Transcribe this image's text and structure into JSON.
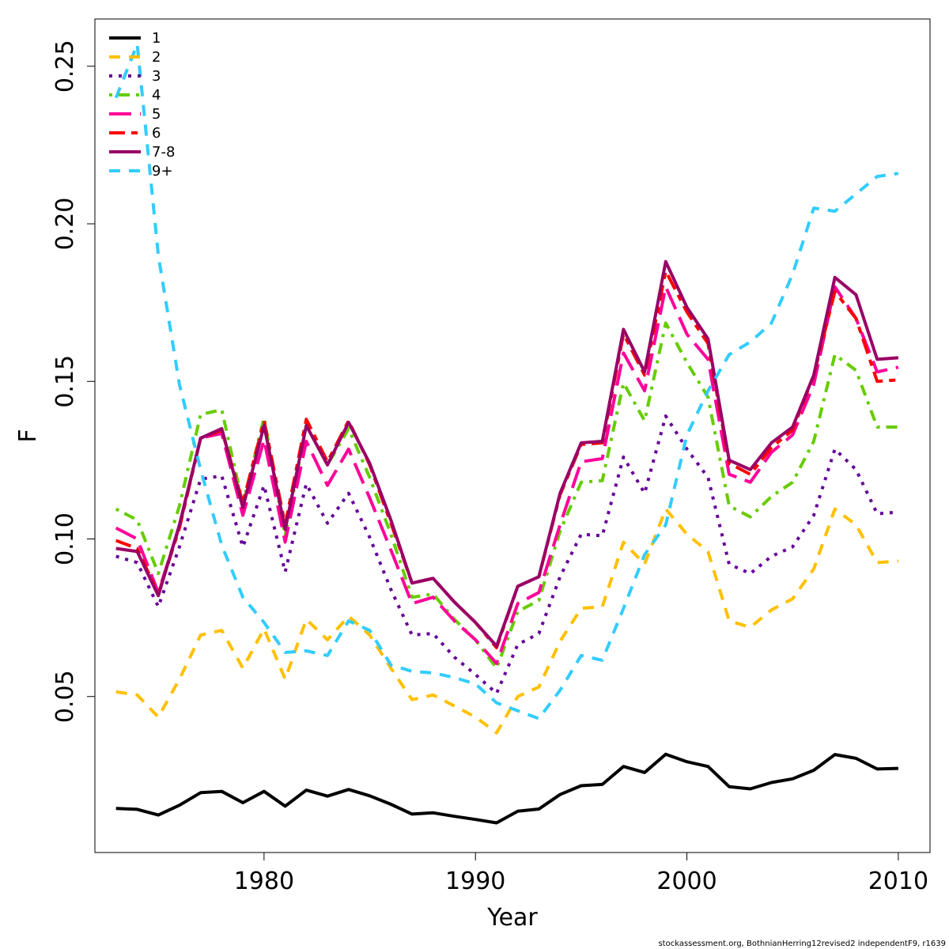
{
  "chart_data": {
    "type": "line",
    "xlabel": "Year",
    "ylabel": "F",
    "xlim": [
      1972,
      2011.5
    ],
    "ylim": [
      0.0005,
      0.265
    ],
    "x_ticks": [
      1980,
      1990,
      2000,
      2010
    ],
    "x_tick_labels": [
      "1980",
      "1990",
      "2000",
      "2010"
    ],
    "y_ticks": [
      0.05,
      0.1,
      0.15,
      0.2,
      0.25
    ],
    "y_tick_labels": [
      "0.05",
      "0.10",
      "0.15",
      "0.20",
      "0.25"
    ],
    "legend_position": "top-left",
    "x": [
      1973,
      1974,
      1975,
      1976,
      1977,
      1978,
      1979,
      1980,
      1981,
      1982,
      1983,
      1984,
      1985,
      1986,
      1987,
      1988,
      1989,
      1990,
      1991,
      1992,
      1993,
      1994,
      1995,
      1996,
      1997,
      1998,
      1999,
      2000,
      2001,
      2002,
      2003,
      2004,
      2005,
      2006,
      2007,
      2008,
      2009,
      2010
    ],
    "series": [
      {
        "name": "1",
        "color": "#000000",
        "dash": "solid",
        "values": [
          0.0145,
          0.0142,
          0.0124,
          0.0155,
          0.0195,
          0.0199,
          0.0163,
          0.0199,
          0.0152,
          0.0203,
          0.0184,
          0.0205,
          0.0185,
          0.0158,
          0.0127,
          0.0131,
          0.012,
          0.011,
          0.0099,
          0.0136,
          0.0143,
          0.0189,
          0.0217,
          0.0221,
          0.0278,
          0.0259,
          0.0317,
          0.0293,
          0.0278,
          0.0214,
          0.0207,
          0.0227,
          0.0239,
          0.0266,
          0.0316,
          0.0304,
          0.027,
          0.0272
        ]
      },
      {
        "name": "2",
        "color": "#FFC000",
        "dash": "dashed",
        "values": [
          0.0515,
          0.0505,
          0.0435,
          0.0555,
          0.0695,
          0.071,
          0.059,
          0.0715,
          0.0555,
          0.0745,
          0.068,
          0.0755,
          0.0695,
          0.059,
          0.049,
          0.0505,
          0.047,
          0.0435,
          0.0385,
          0.05,
          0.053,
          0.0675,
          0.078,
          0.0785,
          0.099,
          0.092,
          0.1095,
          0.1015,
          0.096,
          0.074,
          0.072,
          0.0775,
          0.081,
          0.0905,
          0.1095,
          0.1045,
          0.0925,
          0.093
        ]
      },
      {
        "name": "3",
        "color": "#660099",
        "dash": "dotted",
        "values": [
          0.0945,
          0.0925,
          0.0785,
          0.0975,
          0.119,
          0.12,
          0.0975,
          0.117,
          0.0895,
          0.1175,
          0.105,
          0.1145,
          0.1005,
          0.084,
          0.0695,
          0.07,
          0.0625,
          0.057,
          0.051,
          0.0665,
          0.07,
          0.088,
          0.1015,
          0.101,
          0.126,
          0.1145,
          0.139,
          0.1285,
          0.1195,
          0.092,
          0.089,
          0.0945,
          0.0975,
          0.1075,
          0.1285,
          0.122,
          0.108,
          0.1085
        ]
      },
      {
        "name": "4",
        "color": "#66CC00",
        "dash": "dashdot",
        "values": [
          0.1095,
          0.106,
          0.089,
          0.1105,
          0.1395,
          0.141,
          0.111,
          0.1385,
          0.101,
          0.136,
          0.1235,
          0.135,
          0.1195,
          0.1015,
          0.0815,
          0.0825,
          0.0745,
          0.068,
          0.059,
          0.077,
          0.0805,
          0.1025,
          0.118,
          0.1185,
          0.1495,
          0.1375,
          0.1685,
          0.156,
          0.145,
          0.1105,
          0.107,
          0.1135,
          0.118,
          0.131,
          0.1585,
          0.1535,
          0.1355,
          0.1355
        ]
      },
      {
        "name": "5",
        "color": "#FF0099",
        "dash": "longdash",
        "values": [
          0.1035,
          0.1,
          0.083,
          0.104,
          0.132,
          0.1335,
          0.1075,
          0.1315,
          0.099,
          0.131,
          0.117,
          0.1285,
          0.113,
          0.0965,
          0.0795,
          0.0815,
          0.074,
          0.068,
          0.0605,
          0.0795,
          0.083,
          0.1045,
          0.1245,
          0.1255,
          0.159,
          0.147,
          0.18,
          0.165,
          0.157,
          0.1205,
          0.118,
          0.1275,
          0.133,
          0.149,
          0.18,
          0.17,
          0.153,
          0.1545
        ]
      },
      {
        "name": "6",
        "color": "#FF0000",
        "dash": "twodash",
        "values": [
          0.0995,
          0.097,
          0.0825,
          0.1035,
          0.132,
          0.1345,
          0.1115,
          0.1375,
          0.1045,
          0.138,
          0.1245,
          0.1375,
          0.1235,
          0.105,
          0.086,
          0.0875,
          0.08,
          0.0735,
          0.0655,
          0.085,
          0.088,
          0.114,
          0.13,
          0.1305,
          0.165,
          0.152,
          0.185,
          0.172,
          0.162,
          0.124,
          0.1205,
          0.129,
          0.1345,
          0.152,
          0.1785,
          0.17,
          0.15,
          0.1505
        ]
      },
      {
        "name": "7-8",
        "color": "#990066",
        "dash": "solid",
        "values": [
          0.097,
          0.096,
          0.082,
          0.1045,
          0.132,
          0.135,
          0.11,
          0.136,
          0.103,
          0.136,
          0.1235,
          0.137,
          0.124,
          0.106,
          0.086,
          0.0875,
          0.08,
          0.0735,
          0.066,
          0.085,
          0.088,
          0.1145,
          0.1305,
          0.131,
          0.1665,
          0.153,
          0.188,
          0.1735,
          0.1635,
          0.125,
          0.122,
          0.1305,
          0.1355,
          0.152,
          0.183,
          0.1775,
          0.157,
          0.1575
        ]
      },
      {
        "name": "9+",
        "color": "#33CCFF",
        "dash": "dashed",
        "values": [
          0.24,
          0.257,
          0.19,
          0.149,
          0.122,
          0.098,
          0.0815,
          0.0735,
          0.064,
          0.0645,
          0.063,
          0.074,
          0.071,
          0.06,
          0.058,
          0.0575,
          0.056,
          0.054,
          0.048,
          0.0455,
          0.043,
          0.052,
          0.063,
          0.0615,
          0.078,
          0.095,
          0.1045,
          0.133,
          0.147,
          0.1585,
          0.1625,
          0.1685,
          0.184,
          0.205,
          0.204,
          0.2095,
          0.215,
          0.216
        ]
      }
    ]
  },
  "footer": "stockassessment.org, BothnianHerring12revised2  independentF9, r1639"
}
